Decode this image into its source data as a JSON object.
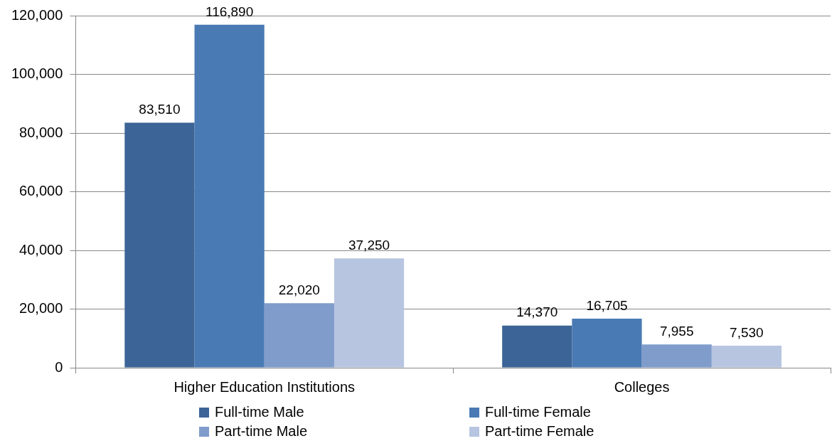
{
  "chart_data": {
    "type": "bar",
    "categories": [
      "Higher Education Institutions",
      "Colleges"
    ],
    "series": [
      {
        "name": "Full-time Male",
        "color": "#3c6496",
        "values": [
          83510,
          14370
        ],
        "value_labels": [
          "83,510",
          "14,370"
        ]
      },
      {
        "name": "Full-time Female",
        "color": "#4a7ab4",
        "values": [
          116890,
          16705
        ],
        "value_labels": [
          "116,890",
          "16,705"
        ]
      },
      {
        "name": "Part-time Male",
        "color": "#7f9ccb",
        "values": [
          22020,
          7955
        ],
        "value_labels": [
          "22,020",
          "7,955"
        ]
      },
      {
        "name": "Part-time Female",
        "color": "#b7c5e0",
        "values": [
          37250,
          7530
        ],
        "value_labels": [
          "37,250",
          "7,530"
        ]
      }
    ],
    "ylim": [
      0,
      120000
    ],
    "yticks": [
      0,
      {
        "value": 20000,
        "label": "20,000"
      },
      {
        "value": 40000,
        "label": "40,000"
      },
      {
        "value": 60000,
        "label": "60,000"
      },
      {
        "value": 80000,
        "label": "80,000"
      },
      {
        "value": 100000,
        "label": "100,000"
      },
      {
        "value": 120000,
        "label": "120,000"
      }
    ],
    "grid": "y",
    "legend": "bottom"
  }
}
